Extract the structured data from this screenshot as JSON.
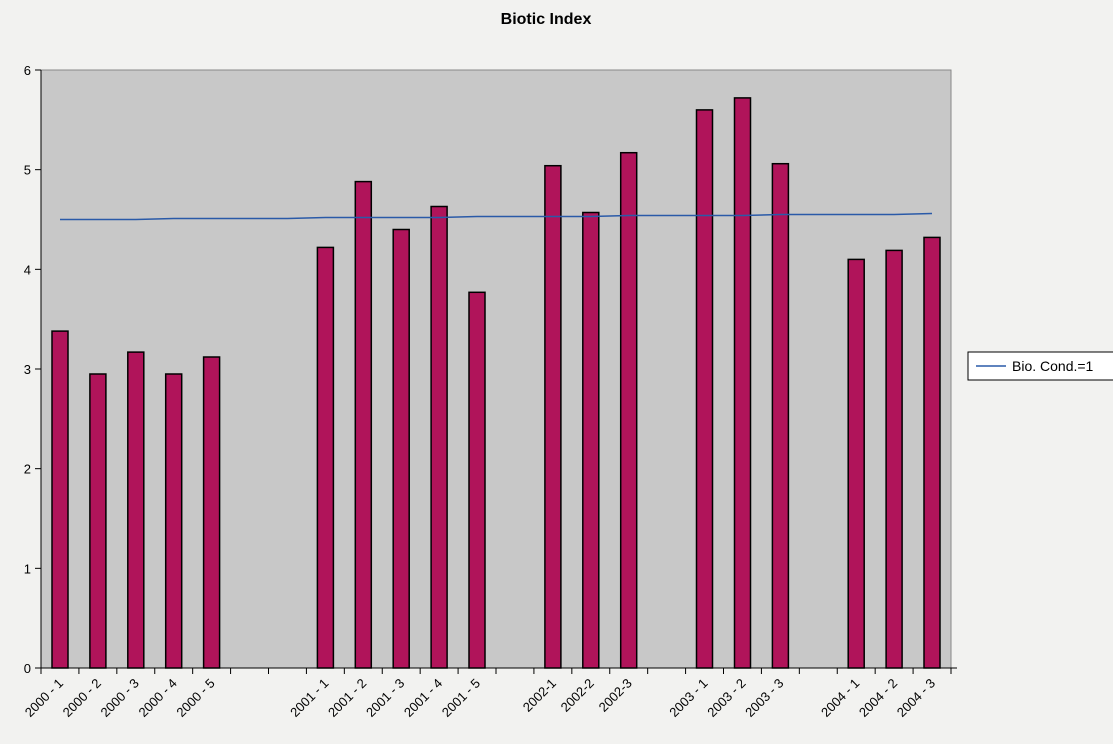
{
  "chart_data": {
    "type": "bar",
    "title": "Biotic Index",
    "xlabel": "",
    "ylabel": "",
    "ylim": [
      0,
      6
    ],
    "yticks": [
      0,
      1,
      2,
      3,
      4,
      5,
      6
    ],
    "grid": false,
    "legend_position": "right",
    "categories": [
      "2000 - 1",
      "2000 - 2",
      "2000 - 3",
      "2000 - 4",
      "2000 - 5",
      "",
      "",
      "2001 - 1",
      "2001 - 2",
      "2001 - 3",
      "2001 - 4",
      "2001 - 5",
      "",
      "2002-1",
      "2002-2",
      "2002-3",
      "",
      "2003 - 1",
      "2003 - 2",
      "2003 - 3",
      "",
      "2004 - 1",
      "2004 - 2",
      "2004 - 3"
    ],
    "series": [
      {
        "type": "bar",
        "color": "#b0145a",
        "values": [
          3.38,
          2.95,
          3.17,
          2.95,
          3.12,
          null,
          null,
          4.22,
          4.88,
          4.4,
          4.63,
          3.77,
          null,
          5.04,
          4.57,
          5.17,
          null,
          5.6,
          5.72,
          5.06,
          null,
          4.1,
          4.19,
          4.32
        ]
      },
      {
        "type": "line",
        "name": "Bio. Cond.=1",
        "color": "#2a5aa8",
        "values": [
          4.5,
          4.5,
          4.5,
          4.51,
          4.51,
          4.51,
          4.51,
          4.52,
          4.52,
          4.52,
          4.52,
          4.53,
          4.53,
          4.53,
          4.53,
          4.54,
          4.54,
          4.54,
          4.54,
          4.55,
          4.55,
          4.55,
          4.55,
          4.56
        ]
      }
    ],
    "plot_background": "#c8c8c8"
  }
}
